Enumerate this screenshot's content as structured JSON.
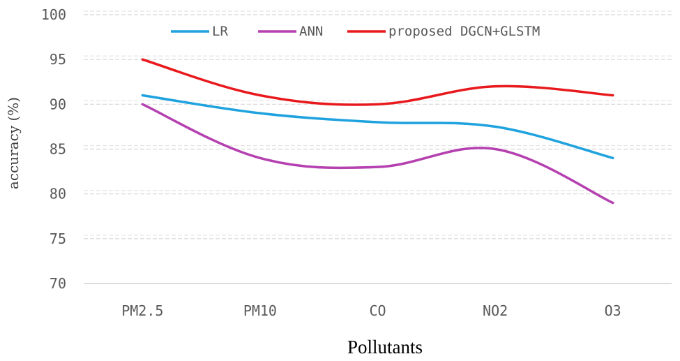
{
  "chart_data": {
    "type": "line",
    "title": "",
    "xlabel": "Pollutants",
    "ylabel": "accuracy (%)",
    "categories": [
      "PM2.5",
      "PM10",
      "CO",
      "NO2",
      "O3"
    ],
    "ylim": [
      70,
      100
    ],
    "yticks": [
      70,
      75,
      80,
      85,
      90,
      95,
      100
    ],
    "grid": true,
    "legend_position": "top",
    "series": [
      {
        "name": "LR",
        "values": [
          91,
          89,
          88,
          87.5,
          84
        ],
        "color": "#1fa2de"
      },
      {
        "name": "ANN",
        "values": [
          90,
          84,
          83,
          85,
          79
        ],
        "color": "#b540b0"
      },
      {
        "name": "proposed DGCN+GLSTM",
        "values": [
          95,
          91,
          90,
          92,
          91
        ],
        "color": "#e8191c"
      }
    ]
  }
}
